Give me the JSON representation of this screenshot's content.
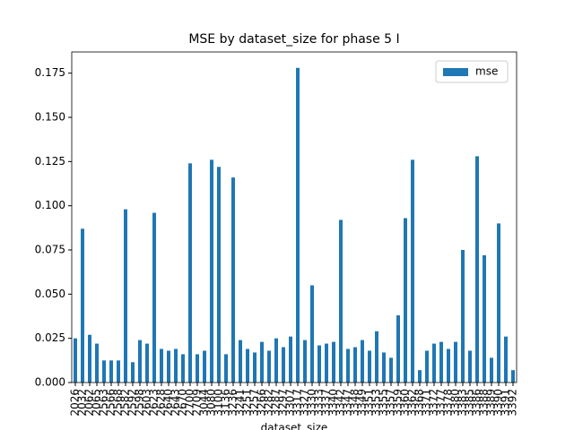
{
  "chart_data": {
    "type": "bar",
    "title": "MSE by dataset_size for phase 5 I",
    "x_label": "dataset_size",
    "categories": [
      "2026",
      "2032",
      "2062",
      "2065",
      "2563",
      "2566",
      "2568",
      "2582",
      "2592",
      "2598",
      "2603",
      "2623",
      "2628",
      "2640",
      "2643",
      "2670",
      "2700",
      "2709",
      "3044",
      "3080",
      "3100",
      "3136",
      "3236",
      "3241",
      "3251",
      "3257",
      "3266",
      "3282",
      "3287",
      "3297",
      "3307",
      "3317",
      "3327",
      "3330",
      "3333",
      "3337",
      "3340",
      "3342",
      "3347",
      "3348",
      "3349",
      "3351",
      "3353",
      "3355",
      "3357",
      "3359",
      "3360",
      "3362",
      "3368",
      "3371",
      "3372",
      "3377",
      "3378",
      "3380",
      "3383",
      "3385",
      "3386",
      "3388",
      "3389",
      "3390",
      "3391",
      "3392"
    ],
    "series": [
      {
        "name": "mse",
        "color": "#1f77b4",
        "values": [
          0.025,
          0.087,
          0.027,
          0.022,
          0.0125,
          0.0125,
          0.0125,
          0.098,
          0.0115,
          0.024,
          0.022,
          0.096,
          0.019,
          0.018,
          0.019,
          0.016,
          0.124,
          0.016,
          0.018,
          0.126,
          0.122,
          0.016,
          0.116,
          0.024,
          0.019,
          0.017,
          0.023,
          0.018,
          0.025,
          0.02,
          0.026,
          0.178,
          0.024,
          0.055,
          0.021,
          0.022,
          0.023,
          0.092,
          0.019,
          0.02,
          0.024,
          0.018,
          0.029,
          0.017,
          0.014,
          0.038,
          0.093,
          0.126,
          0.007,
          0.018,
          0.022,
          0.023,
          0.019,
          0.023,
          0.075,
          0.018,
          0.128,
          0.072,
          0.014,
          0.09,
          0.026,
          0.007
        ]
      }
    ],
    "ylim": [
      0,
      0.187
    ],
    "yticks": [
      {
        "value": 0,
        "label": "0.000"
      },
      {
        "value": 0.025,
        "label": "0.025"
      },
      {
        "value": 0.05,
        "label": "0.050"
      },
      {
        "value": 0.075,
        "label": "0.075"
      },
      {
        "value": 0.1,
        "label": "0.100"
      },
      {
        "value": 0.125,
        "label": "0.125"
      },
      {
        "value": 0.15,
        "label": "0.150"
      },
      {
        "value": 0.175,
        "label": "0.175"
      }
    ],
    "legend": "upper right",
    "grid": false
  }
}
